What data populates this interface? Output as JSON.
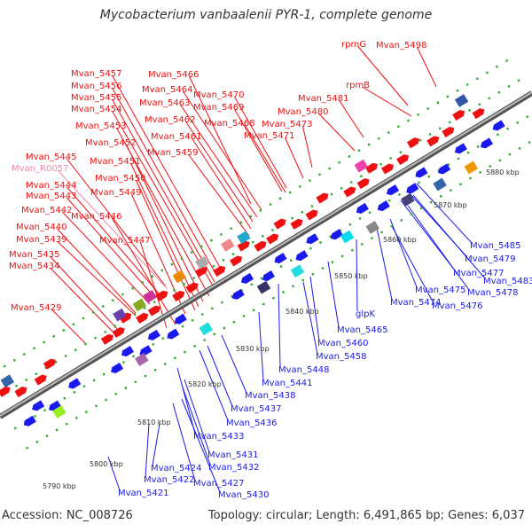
{
  "title": "Mycobacterium vanbaalenii PYR-1, complete genome",
  "footer": {
    "accession": "Accession: NC_008726",
    "summary": "Topology: circular; Length: 6,491,865 bp; Genes: 6,037"
  },
  "kbp_ticks": [
    "5790 kbp",
    "5800 kbp",
    "5810 kbp",
    "5820 kbp",
    "5830 kbp",
    "5840 kbp",
    "5850 kbp",
    "5860 kbp",
    "5870 kbp",
    "5880 kbp"
  ],
  "colors": {
    "forward_gene": "#ee1111",
    "reverse_gene": "#1a1aee",
    "rna_gene": "#ee88aa",
    "backbone": "#888888",
    "tick": "#33aa33"
  },
  "top_labels": [
    {
      "text": "Mvan_5498",
      "color": "#ee1111"
    },
    {
      "text": "rpmG",
      "color": "#ee1111"
    },
    {
      "text": "rpmB",
      "color": "#ee1111"
    },
    {
      "text": "Mvan_5481",
      "color": "#ee1111"
    },
    {
      "text": "Mvan_5480",
      "color": "#ee1111"
    },
    {
      "text": "Mvan_5466",
      "color": "#ee1111"
    },
    {
      "text": "Mvan_5470",
      "color": "#ee1111"
    },
    {
      "text": "Mvan_5469",
      "color": "#ee1111"
    },
    {
      "text": "Mvan_5473",
      "color": "#ee1111"
    },
    {
      "text": "Mvan_5468",
      "color": "#ee1111"
    },
    {
      "text": "Mvan_5471",
      "color": "#ee1111"
    },
    {
      "text": "Mvan_5464",
      "color": "#ee1111"
    },
    {
      "text": "Mvan_5463",
      "color": "#ee1111"
    },
    {
      "text": "Mvan_5462",
      "color": "#ee1111"
    },
    {
      "text": "Mvan_5461",
      "color": "#ee1111"
    },
    {
      "text": "Mvan_5459",
      "color": "#ee1111"
    },
    {
      "text": "Mvan_5457",
      "color": "#ee1111"
    },
    {
      "text": "Mvan_5456",
      "color": "#ee1111"
    },
    {
      "text": "Mvan_5455",
      "color": "#ee1111"
    },
    {
      "text": "Mvan_5454",
      "color": "#ee1111"
    },
    {
      "text": "Mvan_5453",
      "color": "#ee1111"
    },
    {
      "text": "Mvan_5452",
      "color": "#ee1111"
    },
    {
      "text": "Mvan_5451",
      "color": "#ee1111"
    },
    {
      "text": "Mvan_5450",
      "color": "#ee1111"
    },
    {
      "text": "Mvan_5445",
      "color": "#ee1111"
    },
    {
      "text": "Mvan_R0057",
      "color": "#ee88aa"
    },
    {
      "text": "Mvan_5444",
      "color": "#ee1111"
    },
    {
      "text": "Mvan_5449",
      "color": "#ee1111"
    },
    {
      "text": "Mvan_5443",
      "color": "#ee1111"
    },
    {
      "text": "Mvan_5442",
      "color": "#ee1111"
    },
    {
      "text": "Mvan_5446",
      "color": "#ee1111"
    },
    {
      "text": "Mvan_5440",
      "color": "#ee1111"
    },
    {
      "text": "Mvan_5439",
      "color": "#ee1111"
    },
    {
      "text": "Mvan_5447",
      "color": "#ee1111"
    },
    {
      "text": "Mvan_5435",
      "color": "#ee1111"
    },
    {
      "text": "Mvan_5434",
      "color": "#ee1111"
    },
    {
      "text": "Mvan_5429",
      "color": "#ee1111"
    }
  ],
  "bottom_labels": [
    {
      "text": "Mvan_5485"
    },
    {
      "text": "Mvan_5479"
    },
    {
      "text": "Mvan_5477"
    },
    {
      "text": "Mvan_5483"
    },
    {
      "text": "Mvan_5478"
    },
    {
      "text": "Mvan_5475"
    },
    {
      "text": "Mvan_5476"
    },
    {
      "text": "Mvan_5474"
    },
    {
      "text": "glpK"
    },
    {
      "text": "Mvan_5465"
    },
    {
      "text": "Mvan_5460"
    },
    {
      "text": "Mvan_5458"
    },
    {
      "text": "Mvan_5448"
    },
    {
      "text": "Mvan_5441"
    },
    {
      "text": "Mvan_5438"
    },
    {
      "text": "Mvan_5437"
    },
    {
      "text": "Mvan_5436"
    },
    {
      "text": "Mvan_5433"
    },
    {
      "text": "Mvan_5431"
    },
    {
      "text": "Mvan_5432"
    },
    {
      "text": "Mvan_5424"
    },
    {
      "text": "Mvan_5427"
    },
    {
      "text": "Mvan_5422"
    },
    {
      "text": "Mvan_5430"
    },
    {
      "text": "Mvan_5421"
    }
  ]
}
